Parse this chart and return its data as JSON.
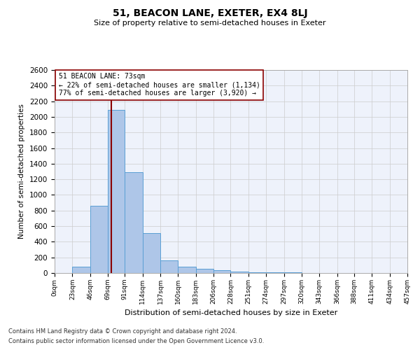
{
  "title": "51, BEACON LANE, EXETER, EX4 8LJ",
  "subtitle": "Size of property relative to semi-detached houses in Exeter",
  "xlabel": "Distribution of semi-detached houses by size in Exeter",
  "ylabel": "Number of semi-detached properties",
  "footer_line1": "Contains HM Land Registry data © Crown copyright and database right 2024.",
  "footer_line2": "Contains public sector information licensed under the Open Government Licence v3.0.",
  "annotation_line1": "51 BEACON LANE: 73sqm",
  "annotation_line2": "← 22% of semi-detached houses are smaller (1,134)",
  "annotation_line3": "77% of semi-detached houses are larger (3,920) →",
  "property_size": 73,
  "bin_edges": [
    0,
    23,
    46,
    69,
    91,
    114,
    137,
    160,
    183,
    206,
    228,
    251,
    274,
    297,
    320,
    343,
    366,
    388,
    411,
    434,
    457
  ],
  "bin_counts": [
    0,
    80,
    860,
    2090,
    1290,
    510,
    160,
    80,
    50,
    40,
    20,
    10,
    5,
    5,
    3,
    2,
    1,
    1,
    1,
    0
  ],
  "bar_color": "#aec6e8",
  "bar_edge_color": "#5a9fd4",
  "vline_color": "#8b0000",
  "grid_color": "#cccccc",
  "background_color": "#eef2fb",
  "ylim": [
    0,
    2600
  ],
  "yticks": [
    0,
    200,
    400,
    600,
    800,
    1000,
    1200,
    1400,
    1600,
    1800,
    2000,
    2200,
    2400,
    2600
  ]
}
